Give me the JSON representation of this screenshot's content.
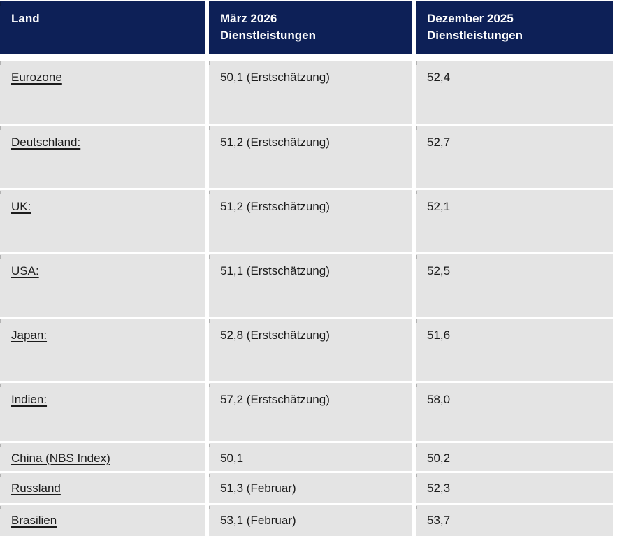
{
  "header": {
    "land": "Land",
    "maerz": "März 2026\nDienstleistungen",
    "dezember": "Dezember 2025\nDienstleistungen"
  },
  "rows": [
    {
      "land": "Eurozone",
      "maerz": "50,1 (Erstschätzung)",
      "dezember": "52,4"
    },
    {
      "land": "Deutschland:",
      "maerz": "51,2 (Erstschätzung)",
      "dezember": "52,7"
    },
    {
      "land": "UK:",
      "maerz": "51,2 (Erstschätzung)",
      "dezember": "52,1"
    },
    {
      "land": "USA:",
      "maerz": "51,1 (Erstschätzung)",
      "dezember": "52,5"
    },
    {
      "land": "Japan:",
      "maerz": "52,8 (Erstschätzung)",
      "dezember": "51,6"
    },
    {
      "land": "Indien:",
      "maerz": "57,2 (Erstschätzung)",
      "dezember": "58,0"
    },
    {
      "land": "China (NBS Index)",
      "maerz": "50,1",
      "dezember": "50,2"
    },
    {
      "land": "Russland",
      "maerz": "51,3 (Februar)",
      "dezember": "52,3"
    },
    {
      "land": "Brasilien",
      "maerz": "53,1 (Februar)",
      "dezember": "53,7"
    }
  ],
  "colors": {
    "header_bg": "#0d2057",
    "header_text": "#ffffff",
    "row_bg": "#e4e4e4",
    "text": "#1c1c1c",
    "background": "#ffffff"
  }
}
